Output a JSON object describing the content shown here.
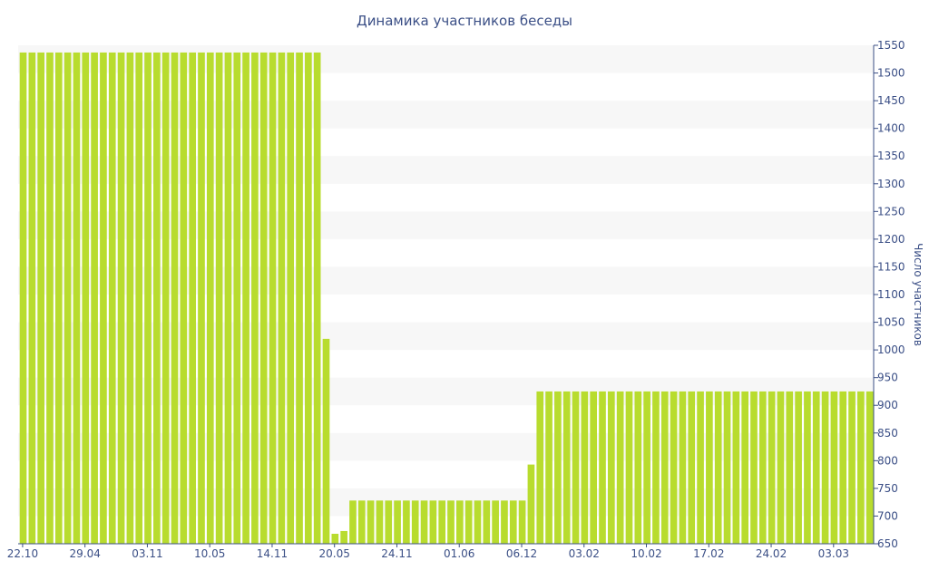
{
  "chart_data": {
    "type": "bar",
    "title": "Динамика участников беседы",
    "xlabel": "",
    "ylabel": "Число участников",
    "ylim": [
      650,
      1550
    ],
    "y_ticks": [
      650,
      700,
      750,
      800,
      850,
      900,
      950,
      1000,
      1050,
      1100,
      1150,
      1200,
      1250,
      1300,
      1350,
      1400,
      1450,
      1500,
      1550
    ],
    "x_tick_labels": [
      {
        "index": 0,
        "label": "22.10"
      },
      {
        "index": 7,
        "label": "29.04"
      },
      {
        "index": 14,
        "label": "03.11"
      },
      {
        "index": 21,
        "label": "10.05"
      },
      {
        "index": 28,
        "label": "14.11"
      },
      {
        "index": 35,
        "label": "20.05"
      },
      {
        "index": 42,
        "label": "24.11"
      },
      {
        "index": 49,
        "label": "01.06"
      },
      {
        "index": 56,
        "label": "06.12"
      },
      {
        "index": 63,
        "label": "03.02"
      },
      {
        "index": 70,
        "label": "10.02"
      },
      {
        "index": 77,
        "label": "17.02"
      },
      {
        "index": 84,
        "label": "24.02"
      },
      {
        "index": 91,
        "label": "03.03"
      }
    ],
    "y_axis_position": "right",
    "grid": "alternating horizontal bands",
    "bar_color": "#b8dc2e",
    "band_color": "#f7f7f7",
    "text_color": "#3b4f86",
    "values": [
      1537,
      1537,
      1537,
      1537,
      1537,
      1537,
      1537,
      1537,
      1537,
      1537,
      1537,
      1537,
      1537,
      1537,
      1537,
      1537,
      1537,
      1537,
      1537,
      1537,
      1537,
      1537,
      1537,
      1537,
      1537,
      1537,
      1537,
      1537,
      1537,
      1537,
      1537,
      1537,
      1537,
      1537,
      1020,
      668,
      673,
      728,
      728,
      728,
      728,
      728,
      728,
      728,
      728,
      728,
      728,
      728,
      728,
      728,
      728,
      728,
      728,
      728,
      728,
      728,
      728,
      793,
      925,
      925,
      925,
      925,
      925,
      925,
      925,
      925,
      925,
      925,
      925,
      925,
      925,
      925,
      925,
      925,
      925,
      925,
      925,
      925,
      925,
      925,
      925,
      925,
      925,
      925,
      925,
      925,
      925,
      925,
      925,
      925,
      925,
      925,
      925,
      925,
      925,
      925
    ]
  }
}
